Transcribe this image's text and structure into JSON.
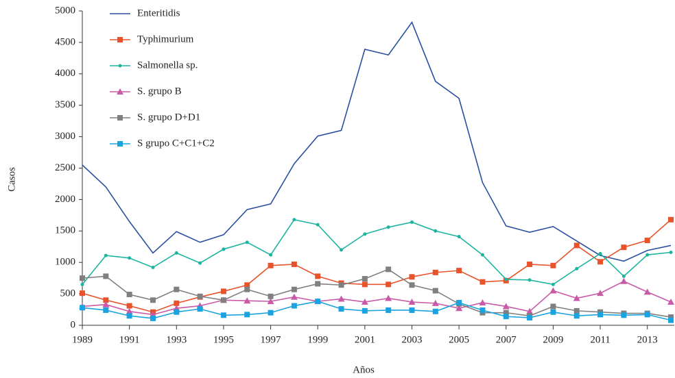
{
  "chart_data": {
    "type": "line",
    "x_label": "Años",
    "y_label": "Casos",
    "x": [
      1989,
      1990,
      1991,
      1992,
      1993,
      1994,
      1995,
      1996,
      1997,
      1998,
      1999,
      2000,
      2001,
      2002,
      2003,
      2004,
      2005,
      2006,
      2007,
      2008,
      2009,
      2010,
      2011,
      2012,
      2013,
      2014
    ],
    "xlim": [
      1989,
      2014
    ],
    "xticks": [
      1989,
      1991,
      1993,
      1995,
      1997,
      1999,
      2001,
      2003,
      2005,
      2007,
      2009,
      2011,
      2013
    ],
    "ylim": [
      0,
      5000
    ],
    "yticks": [
      0,
      500,
      1000,
      1500,
      2000,
      2500,
      3000,
      3500,
      4000,
      4500,
      5000
    ],
    "legend": "upper-left",
    "series": [
      {
        "name": "Enteritidis",
        "color": "#2a4fa0",
        "marker": "none",
        "values": [
          2550,
          2200,
          1650,
          1150,
          1490,
          1320,
          1440,
          1840,
          1930,
          2570,
          3010,
          3100,
          4390,
          4300,
          4820,
          3880,
          3610,
          2270,
          1580,
          1480,
          1570,
          1340,
          1110,
          1020,
          1190,
          1270
        ]
      },
      {
        "name": "Typhimurium",
        "color": "#e8532b",
        "marker": "square",
        "values": [
          510,
          400,
          310,
          210,
          350,
          450,
          540,
          640,
          950,
          970,
          780,
          670,
          650,
          650,
          770,
          840,
          870,
          690,
          710,
          970,
          950,
          1270,
          1010,
          1240,
          1350,
          1680
        ]
      },
      {
        "name": "Salmonella sp.",
        "color": "#1db4a0",
        "marker": "circle",
        "values": [
          650,
          1110,
          1070,
          920,
          1150,
          990,
          1210,
          1320,
          1120,
          1680,
          1600,
          1200,
          1450,
          1560,
          1640,
          1500,
          1410,
          1120,
          730,
          720,
          650,
          900,
          1140,
          780,
          1120,
          1160
        ]
      },
      {
        "name": "S. grupo B",
        "color": "#c85aa8",
        "marker": "triangle",
        "values": [
          300,
          330,
          220,
          170,
          270,
          310,
          400,
          390,
          380,
          450,
          380,
          420,
          370,
          430,
          370,
          350,
          270,
          360,
          300,
          220,
          550,
          430,
          510,
          700,
          530,
          370
        ]
      },
      {
        "name": "S. grupo D+D1",
        "color": "#808080",
        "marker": "square",
        "values": [
          750,
          780,
          490,
          400,
          570,
          460,
          400,
          570,
          460,
          570,
          660,
          640,
          740,
          890,
          640,
          550,
          340,
          200,
          200,
          150,
          300,
          230,
          210,
          190,
          190,
          130
        ]
      },
      {
        "name": "S grupo C+C1+C2",
        "color": "#1aa3e0",
        "marker": "square",
        "values": [
          280,
          240,
          150,
          110,
          210,
          260,
          160,
          170,
          200,
          310,
          380,
          260,
          230,
          240,
          240,
          220,
          360,
          240,
          140,
          120,
          210,
          150,
          170,
          160,
          170,
          80
        ]
      }
    ]
  }
}
